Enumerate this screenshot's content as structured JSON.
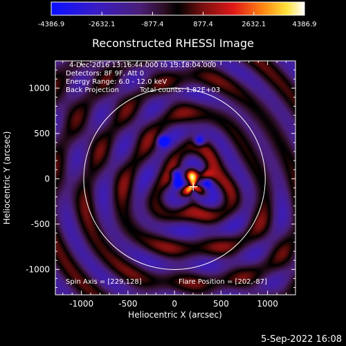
{
  "chart_data": {
    "type": "heatmap",
    "title": "Reconstructed RHESSI Image",
    "xlabel": "Heliocentric X (arcsec)",
    "ylabel": "Heliocentric Y (arcsec)",
    "xlim": [
      -1280,
      1300
    ],
    "ylim": [
      -1280,
      1300
    ],
    "x_ticks": [
      "-1000",
      "-500",
      "0",
      "500",
      "1000"
    ],
    "x_tick_values": [
      -1000,
      -500,
      0,
      500,
      1000
    ],
    "y_ticks": [
      "1000",
      "500",
      "0",
      "-500",
      "-1000"
    ],
    "y_tick_values": [
      1000,
      500,
      0,
      -500,
      -1000
    ],
    "colorbar": {
      "ticks": [
        "-4386.9",
        "-2632.1",
        "-877.4",
        "877.4",
        "2632.1",
        "4386.9"
      ],
      "range": [
        -4386.9,
        4386.9
      ],
      "colormap": "blue-purple-red-yellow-white"
    },
    "annotations": [
      "4-Dec-2016 13:16:44.000 to 13:18:04.000",
      "Detectors: 8F 9F, Att 0",
      "Energy Range: 6.0 - 12.0 keV",
      "Back Projection",
      "Total counts: 1.82E+03"
    ],
    "spin_axis_label": "Spin Axis = [229,128]",
    "flare_position_label": "Flare Position = [202,-87]",
    "solar_limb_radius": 975,
    "center_marker": [
      202,
      -87
    ],
    "peaks_positive": [
      [
        175,
        40
      ],
      [
        330,
        20
      ],
      [
        205,
        -140
      ]
    ],
    "peaks_negative": [
      [
        -120,
        415
      ],
      [
        270,
        420
      ],
      [
        20,
        50
      ],
      [
        40,
        -40
      ],
      [
        350,
        -25
      ],
      [
        220,
        -150
      ]
    ],
    "grid": false,
    "legend": "none"
  },
  "footer": {
    "timestamp": "5-Sep-2022 16:08"
  },
  "colors": {
    "background": "#000000",
    "axes": "#ffffff",
    "limb": "#ffffff"
  }
}
